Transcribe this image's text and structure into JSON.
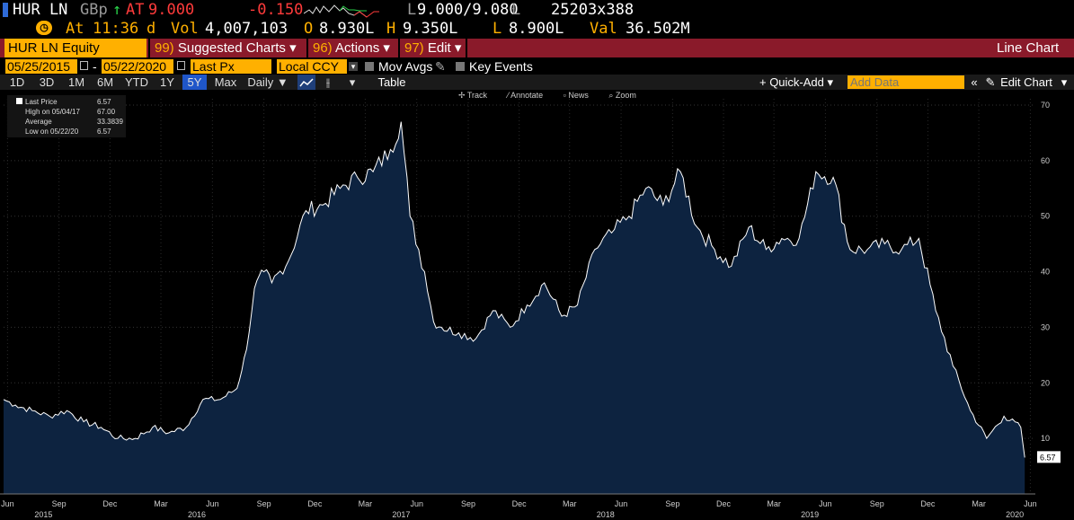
{
  "quote": {
    "ticker": "HUR LN",
    "currency": "GBp",
    "arrow": "↑",
    "at_label": "AT",
    "price": "9.000",
    "change": "-0.150",
    "low_high_prefix": "L",
    "low_high": "9.000/9.080",
    "low_high_suffix": "L",
    "size": "25203x388"
  },
  "quote2": {
    "at_time_label": "At",
    "time": "11:36",
    "d": "d",
    "vol_label": "Vol",
    "vol": "4,007,103",
    "open_label": "O",
    "open": "8.930L",
    "high_label": "H",
    "high": "9.350L",
    "low_label": "L",
    "low": "8.900L",
    "val_label": "Val",
    "val": "36.502M"
  },
  "menubar": {
    "security": "HUR LN Equity",
    "suggested_num": "99)",
    "suggested": "Suggested Charts",
    "actions_num": "96)",
    "actions": "Actions",
    "edit_num": "97)",
    "edit": "Edit",
    "chart_type": "Line Chart",
    "caret": "▾"
  },
  "daterow": {
    "start": "05/25/2015",
    "dash": "-",
    "end": "05/22/2020",
    "field": "Last Px",
    "ccy": "Local CCY",
    "mov_avgs": "Mov Avgs",
    "key_events": "Key Events"
  },
  "range": {
    "buttons": [
      "1D",
      "3D",
      "1M",
      "6M",
      "YTD",
      "1Y",
      "5Y",
      "Max"
    ],
    "active": "5Y",
    "period": "Daily ▼",
    "table": "Table",
    "quick_add": "+ Quick-Add ▾",
    "add_data_placeholder": "Add Data",
    "collapse": "«",
    "edit_chart": "Edit Chart"
  },
  "tools": {
    "track": "Track",
    "annotate": "Annotate",
    "news": "News",
    "zoom": "Zoom"
  },
  "legend": {
    "last_price_label": "Last Price",
    "last_price": "6.57",
    "high_label": "High on 05/04/17",
    "high": "67.00",
    "average_label": "Average",
    "average": "33.3839",
    "low_label": "Low on 05/22/20",
    "low": "6.57"
  },
  "colors": {
    "amber": "#ffb000",
    "menu": "#8a1a2a",
    "area": "#0d2340",
    "line": "#ffffff",
    "active": "#1f56c9"
  },
  "chart_data": {
    "type": "area",
    "ylim": [
      0,
      70
    ],
    "yticks": [
      10,
      20,
      30,
      40,
      50,
      60,
      70
    ],
    "last_value_label": "6.57",
    "xticks": [
      {
        "label": "Jun",
        "year": "2015",
        "date": "2015-06-01"
      },
      {
        "label": "Sep",
        "date": "2015-09-01"
      },
      {
        "label": "Dec",
        "date": "2015-12-01"
      },
      {
        "label": "Mar",
        "year": "2016",
        "date": "2016-03-01"
      },
      {
        "label": "Jun",
        "date": "2016-06-01"
      },
      {
        "label": "Sep",
        "date": "2016-09-01"
      },
      {
        "label": "Dec",
        "date": "2016-12-01"
      },
      {
        "label": "Mar",
        "year": "2017",
        "date": "2017-03-01"
      },
      {
        "label": "Jun",
        "date": "2017-06-01"
      },
      {
        "label": "Sep",
        "date": "2017-09-01"
      },
      {
        "label": "Dec",
        "date": "2017-12-01"
      },
      {
        "label": "Mar",
        "year": "2018",
        "date": "2018-03-01"
      },
      {
        "label": "Jun",
        "date": "2018-06-01"
      },
      {
        "label": "Sep",
        "date": "2018-09-01"
      },
      {
        "label": "Dec",
        "date": "2018-12-01"
      },
      {
        "label": "Mar",
        "year": "2019",
        "date": "2019-03-01"
      },
      {
        "label": "Jun",
        "date": "2019-06-01"
      },
      {
        "label": "Sep",
        "date": "2019-09-01"
      },
      {
        "label": "Dec",
        "date": "2019-12-01"
      },
      {
        "label": "Mar",
        "year": "2020",
        "date": "2020-03-01"
      },
      {
        "label": "Jun",
        "date": "2020-06-01"
      }
    ],
    "x": [
      "2015-05-25",
      "2015-06-15",
      "2015-07-15",
      "2015-08-15",
      "2015-09-15",
      "2015-10-15",
      "2015-11-15",
      "2015-12-15",
      "2016-01-15",
      "2016-02-15",
      "2016-03-15",
      "2016-04-15",
      "2016-05-15",
      "2016-06-15",
      "2016-07-15",
      "2016-08-01",
      "2016-08-15",
      "2016-09-01",
      "2016-09-15",
      "2016-10-15",
      "2016-11-15",
      "2016-12-15",
      "2017-01-15",
      "2017-02-15",
      "2017-03-15",
      "2017-04-15",
      "2017-05-04",
      "2017-05-20",
      "2017-06-15",
      "2017-07-01",
      "2017-07-15",
      "2017-08-15",
      "2017-09-15",
      "2017-10-15",
      "2017-11-15",
      "2017-12-15",
      "2018-01-15",
      "2018-02-15",
      "2018-03-15",
      "2018-04-15",
      "2018-05-15",
      "2018-06-15",
      "2018-07-15",
      "2018-08-15",
      "2018-09-15",
      "2018-10-15",
      "2018-11-15",
      "2018-12-15",
      "2019-01-15",
      "2019-02-15",
      "2019-03-15",
      "2019-04-15",
      "2019-05-15",
      "2019-06-15",
      "2019-07-15",
      "2019-08-15",
      "2019-09-15",
      "2019-10-15",
      "2019-11-15",
      "2019-12-15",
      "2020-01-15",
      "2020-02-15",
      "2020-03-15",
      "2020-04-15",
      "2020-05-15",
      "2020-05-22"
    ],
    "values": [
      17,
      16,
      15,
      14,
      15,
      13,
      12,
      10,
      10,
      12,
      11,
      12,
      17,
      17,
      19,
      26,
      37,
      40,
      38,
      42,
      51,
      52,
      55,
      57,
      58,
      62,
      67,
      50,
      40,
      31,
      30,
      29,
      28,
      33,
      30,
      34,
      38,
      32,
      34,
      44,
      47,
      50,
      55,
      52,
      58,
      48,
      44,
      41,
      48,
      44,
      46,
      46,
      58,
      57,
      44,
      44,
      45,
      44,
      46,
      33,
      23,
      15,
      10,
      14,
      12,
      6.57
    ]
  }
}
